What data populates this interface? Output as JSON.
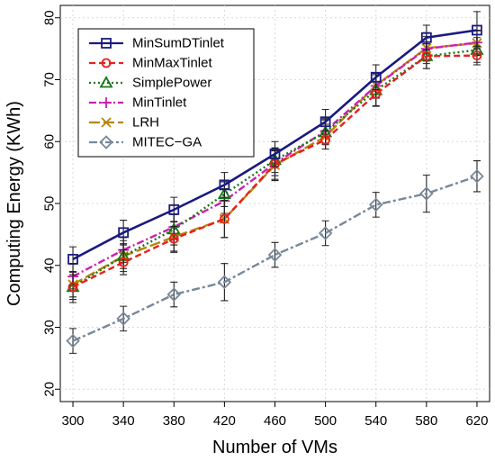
{
  "chart_data": {
    "type": "line",
    "xlabel": "Number of VMs",
    "ylabel": "Computing Energy (KWh)",
    "x": [
      300,
      340,
      380,
      420,
      460,
      500,
      540,
      580,
      620
    ],
    "xlim": [
      290,
      630
    ],
    "ylim": [
      18,
      82
    ],
    "yticks": [
      20,
      30,
      40,
      50,
      60,
      70,
      80
    ],
    "grid": true,
    "legend_position": "top-left",
    "series": [
      {
        "name": "MinSumDTinlet",
        "color": "#1a1a80",
        "dash": "solid",
        "marker": "square",
        "values": [
          41.0,
          45.3,
          49.0,
          53.0,
          58.0,
          63.2,
          70.4,
          76.8,
          78.0
        ],
        "error": [
          2.0,
          2.0,
          2.0,
          2.0,
          2.0,
          2.0,
          2.0,
          2.0,
          3.0
        ]
      },
      {
        "name": "MinMaxTinlet",
        "color": "#e8201c",
        "dash": "dashed",
        "marker": "circle",
        "values": [
          36.5,
          40.5,
          44.3,
          47.5,
          56.4,
          60.3,
          67.7,
          73.8,
          73.9
        ],
        "error": [
          2.0,
          2.0,
          2.0,
          3.0,
          2.5,
          1.5,
          2.0,
          2.0,
          1.5
        ]
      },
      {
        "name": "SimplePower",
        "color": "#167716",
        "dash": "dotted",
        "marker": "triangle",
        "values": [
          36.5,
          41.5,
          45.8,
          51.5,
          57.0,
          61.5,
          68.3,
          73.8,
          74.8
        ],
        "error": [
          2.5,
          2.5,
          2.5,
          2.0,
          2.0,
          2.0,
          2.5,
          2.0,
          2.0
        ]
      },
      {
        "name": "MinTinlet",
        "color": "#cc1fae",
        "dash": "dashdot",
        "marker": "plus",
        "values": [
          38.2,
          42.5,
          46.2,
          50.4,
          56.5,
          61.7,
          69.0,
          75.0,
          76.0
        ],
        "error": [
          2.0,
          2.0,
          2.0,
          2.0,
          2.0,
          2.0,
          2.0,
          2.0,
          2.0
        ]
      },
      {
        "name": "LRH",
        "color": "#b8860b",
        "dash": "longdash",
        "marker": "x",
        "values": [
          36.9,
          41.5,
          44.6,
          47.5,
          56.2,
          60.8,
          69.1,
          75.1,
          75.9
        ],
        "error": [
          2.0,
          2.0,
          2.5,
          3.0,
          2.5,
          2.0,
          2.0,
          2.5,
          2.0
        ]
      },
      {
        "name": "MITEC−GA",
        "color": "#778899",
        "dash": "twodash",
        "marker": "diamond",
        "values": [
          27.8,
          31.4,
          35.3,
          37.3,
          41.7,
          45.2,
          49.8,
          51.6,
          54.4
        ],
        "error": [
          2.0,
          2.0,
          2.0,
          3.0,
          2.0,
          2.0,
          2.0,
          3.0,
          2.5
        ]
      }
    ]
  }
}
